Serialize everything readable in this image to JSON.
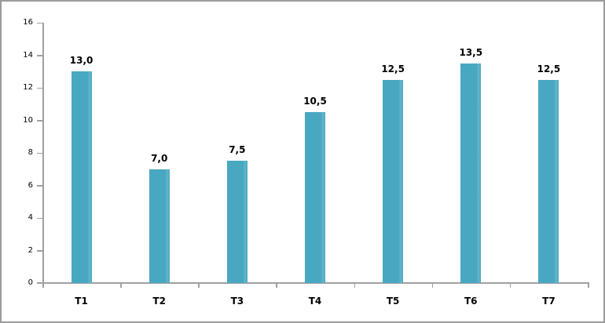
{
  "chart_data": {
    "type": "bar",
    "categories": [
      "T1",
      "T2",
      "T3",
      "T4",
      "T5",
      "T6",
      "T7"
    ],
    "values": [
      13.0,
      7.0,
      7.5,
      10.5,
      12.5,
      13.5,
      12.5
    ],
    "value_labels": [
      "13,0",
      "7,0",
      "7,5",
      "10,5",
      "12,5",
      "13,5",
      "12,5"
    ],
    "title": "",
    "xlabel": "",
    "ylabel": "",
    "ylim": [
      0,
      16
    ],
    "yticks": [
      0,
      2,
      4,
      6,
      8,
      10,
      12,
      14,
      16
    ],
    "ytick_labels": [
      "0",
      "2",
      "4",
      "6",
      "8",
      "10",
      "12",
      "14",
      "16"
    ],
    "grid": false,
    "legend": false,
    "bar_color": "#48a8c1",
    "axis_color": "#a0a0a0",
    "label_color": "#000000",
    "frame_color": "#9b9b9b"
  }
}
